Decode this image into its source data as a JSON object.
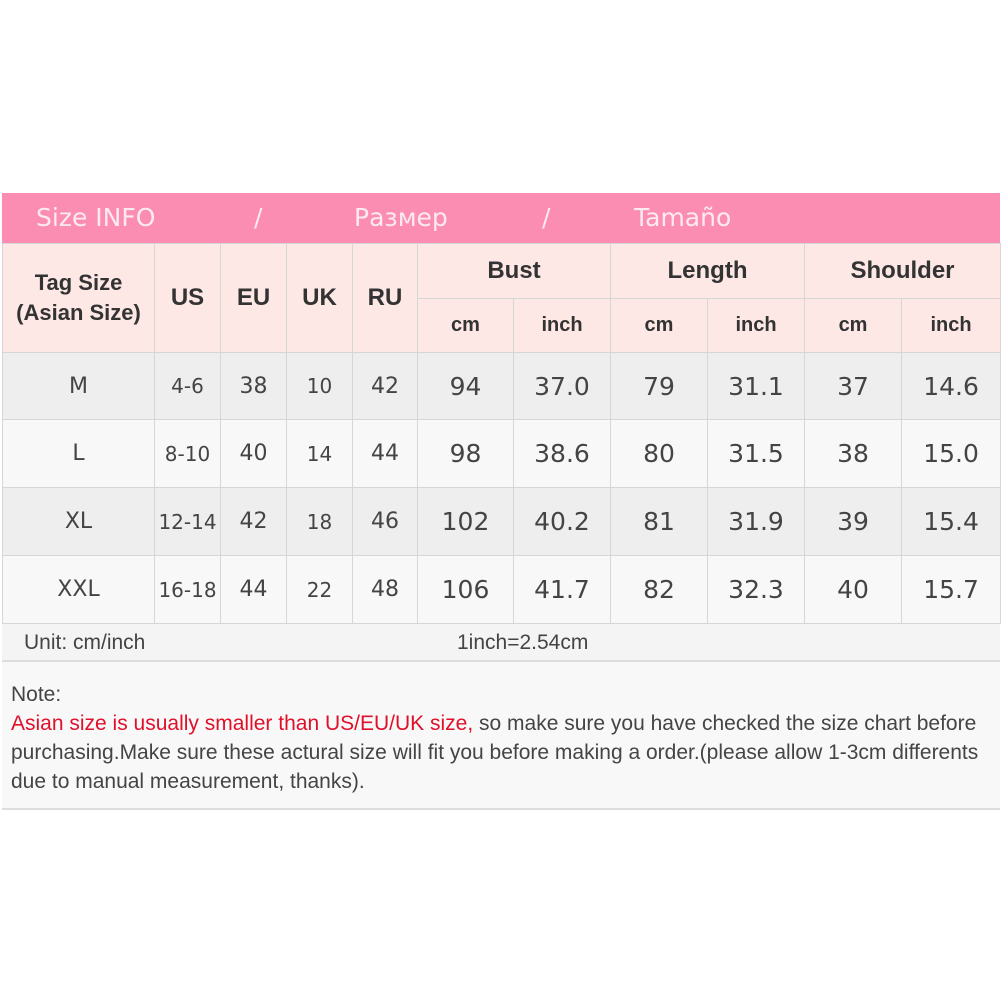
{
  "title": {
    "parts": [
      "Size INFO",
      "/",
      "Размер",
      "/",
      "Tamaño"
    ]
  },
  "headers": {
    "tag": "Tag Size",
    "tag2": "(Asian Size)",
    "us": "US",
    "eu": "EU",
    "uk": "UK",
    "ru": "RU",
    "bust": "Bust",
    "length": "Length",
    "shoulder": "Shoulder",
    "cm": "cm",
    "inch": "inch"
  },
  "rows": [
    [
      "M",
      "4-6",
      "38",
      "10",
      "42",
      "94",
      "37.0",
      "79",
      "31.1",
      "37",
      "14.6"
    ],
    [
      "L",
      "8-10",
      "40",
      "14",
      "44",
      "98",
      "38.6",
      "80",
      "31.5",
      "38",
      "15.0"
    ],
    [
      "XL",
      "12-14",
      "42",
      "18",
      "46",
      "102",
      "40.2",
      "81",
      "31.9",
      "39",
      "15.4"
    ],
    [
      "XXL",
      "16-18",
      "44",
      "22",
      "48",
      "106",
      "41.7",
      "82",
      "32.3",
      "40",
      "15.7"
    ]
  ],
  "unit": {
    "label": "Unit: cm/inch",
    "conversion": "1inch=2.54cm"
  },
  "note": {
    "label": "Note:",
    "warning": "Asian size is usually smaller than US/EU/UK size,",
    "text": " so make sure you have checked the size chart before purchasing.Make sure these actural size will fit you before making a order.(please allow 1-3cm differents due to manual measurement, thanks)."
  },
  "colors": {
    "title_bg": "#fb8db3",
    "header_bg": "#fde8e6",
    "warning": "#e0102a"
  }
}
